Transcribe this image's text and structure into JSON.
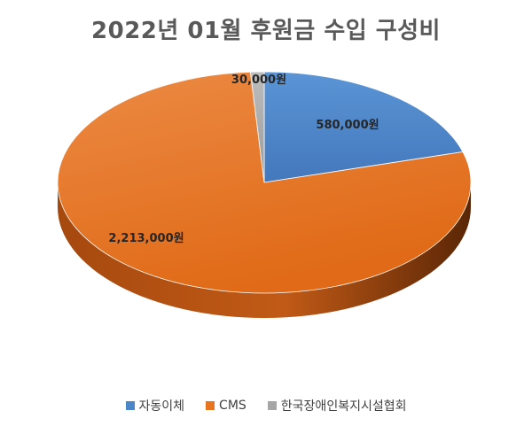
{
  "chart_data": {
    "type": "pie",
    "title": "2022년 01월 후원금 수입 구성비",
    "categories": [
      "자동이체",
      "CMS",
      "한국장애인복지시설협회"
    ],
    "values": [
      580000,
      2213000,
      30000
    ],
    "data_labels": [
      "580,000원",
      "2,213,000원",
      "30,000원"
    ],
    "colors": [
      "#4A86C8",
      "#E8751F",
      "#A6A6A6"
    ],
    "style": "3d-pie",
    "legend": "bottom"
  }
}
